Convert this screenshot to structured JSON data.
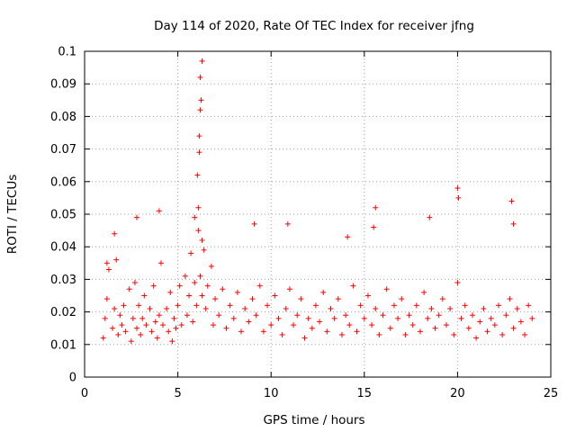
{
  "chart_data": {
    "type": "scatter",
    "title": "Day 114 of 2020, Rate Of TEC Index for receiver jfng",
    "xlabel": "GPS time / hours",
    "ylabel": "ROTI / TECUs",
    "xlim": [
      0,
      25
    ],
    "ylim": [
      0,
      0.1
    ],
    "xticks": [
      0,
      5,
      10,
      15,
      20,
      25
    ],
    "yticks": [
      0,
      0.01,
      0.02,
      0.03,
      0.04,
      0.05,
      0.06,
      0.07,
      0.08,
      0.09,
      0.1
    ],
    "xtick_labels": [
      "0",
      "5",
      "10",
      "15",
      "20",
      "25"
    ],
    "ytick_labels": [
      "0",
      "0.01",
      "0.02",
      "0.03",
      "0.04",
      "0.05",
      "0.06",
      "0.07",
      "0.08",
      "0.09",
      "0.1"
    ],
    "grid": true,
    "marker": "+",
    "color": "#ff0000",
    "series": [
      {
        "name": "ROTI",
        "x": [
          1.0,
          1.1,
          1.2,
          1.3,
          1.5,
          1.6,
          1.7,
          1.8,
          1.9,
          2.0,
          2.1,
          2.2,
          2.4,
          2.5,
          2.6,
          2.7,
          2.8,
          2.9,
          3.0,
          3.1,
          3.2,
          3.3,
          3.5,
          3.6,
          3.7,
          3.8,
          3.9,
          4.0,
          4.1,
          4.2,
          4.4,
          4.5,
          4.6,
          4.7,
          4.8,
          4.9,
          5.0,
          5.1,
          5.2,
          5.4,
          5.5,
          5.6,
          5.7,
          5.8,
          5.9,
          6.0,
          6.1,
          6.2,
          6.3,
          6.4,
          6.5,
          6.6,
          6.8,
          6.9,
          7.0,
          7.2,
          7.4,
          7.6,
          7.8,
          8.0,
          8.2,
          8.4,
          8.6,
          8.8,
          9.0,
          9.2,
          9.4,
          9.6,
          9.8,
          10.0,
          10.2,
          10.4,
          10.6,
          10.8,
          11.0,
          11.2,
          11.4,
          11.6,
          11.8,
          12.0,
          12.2,
          12.4,
          12.6,
          12.8,
          13.0,
          13.2,
          13.4,
          13.6,
          13.8,
          14.0,
          14.2,
          14.4,
          14.6,
          14.8,
          15.0,
          15.2,
          15.4,
          15.6,
          15.8,
          16.0,
          16.2,
          16.4,
          16.6,
          16.8,
          17.0,
          17.2,
          17.4,
          17.6,
          17.8,
          18.0,
          18.2,
          18.4,
          18.6,
          18.8,
          19.0,
          19.2,
          19.4,
          19.6,
          19.8,
          20.0,
          20.2,
          20.4,
          20.6,
          20.8,
          21.0,
          21.2,
          21.4,
          21.6,
          21.8,
          22.0,
          22.2,
          22.4,
          22.6,
          22.8,
          23.0,
          23.2,
          23.4,
          23.6,
          23.8,
          24.0,
          6.1,
          6.15,
          6.2,
          6.25,
          6.3,
          6.2,
          6.15,
          5.9,
          6.05,
          20.0,
          20.05,
          22.9,
          23.0,
          15.6,
          15.5,
          18.5,
          9.1,
          4.0,
          2.8,
          10.9,
          14.1,
          6.3,
          1.2,
          1.6
        ],
        "y": [
          0.012,
          0.018,
          0.024,
          0.033,
          0.015,
          0.021,
          0.036,
          0.013,
          0.019,
          0.016,
          0.022,
          0.014,
          0.027,
          0.011,
          0.018,
          0.029,
          0.015,
          0.022,
          0.013,
          0.018,
          0.025,
          0.016,
          0.021,
          0.014,
          0.028,
          0.017,
          0.012,
          0.019,
          0.035,
          0.016,
          0.021,
          0.014,
          0.026,
          0.011,
          0.018,
          0.015,
          0.022,
          0.028,
          0.016,
          0.031,
          0.019,
          0.025,
          0.038,
          0.017,
          0.029,
          0.022,
          0.045,
          0.031,
          0.025,
          0.039,
          0.021,
          0.028,
          0.034,
          0.016,
          0.024,
          0.019,
          0.027,
          0.015,
          0.022,
          0.018,
          0.026,
          0.014,
          0.021,
          0.017,
          0.024,
          0.019,
          0.028,
          0.014,
          0.022,
          0.016,
          0.025,
          0.018,
          0.013,
          0.021,
          0.027,
          0.016,
          0.019,
          0.024,
          0.012,
          0.018,
          0.015,
          0.022,
          0.017,
          0.026,
          0.014,
          0.021,
          0.018,
          0.024,
          0.013,
          0.019,
          0.016,
          0.028,
          0.014,
          0.022,
          0.018,
          0.025,
          0.016,
          0.021,
          0.013,
          0.019,
          0.027,
          0.015,
          0.022,
          0.018,
          0.024,
          0.013,
          0.019,
          0.016,
          0.022,
          0.014,
          0.026,
          0.018,
          0.021,
          0.015,
          0.019,
          0.024,
          0.016,
          0.021,
          0.013,
          0.029,
          0.018,
          0.022,
          0.015,
          0.019,
          0.012,
          0.017,
          0.021,
          0.014,
          0.018,
          0.016,
          0.022,
          0.013,
          0.019,
          0.024,
          0.015,
          0.021,
          0.017,
          0.013,
          0.022,
          0.018,
          0.052,
          0.069,
          0.092,
          0.085,
          0.097,
          0.082,
          0.074,
          0.049,
          0.062,
          0.058,
          0.055,
          0.054,
          0.047,
          0.052,
          0.046,
          0.049,
          0.047,
          0.051,
          0.049,
          0.047,
          0.043,
          0.042,
          0.035,
          0.044
        ]
      }
    ]
  }
}
